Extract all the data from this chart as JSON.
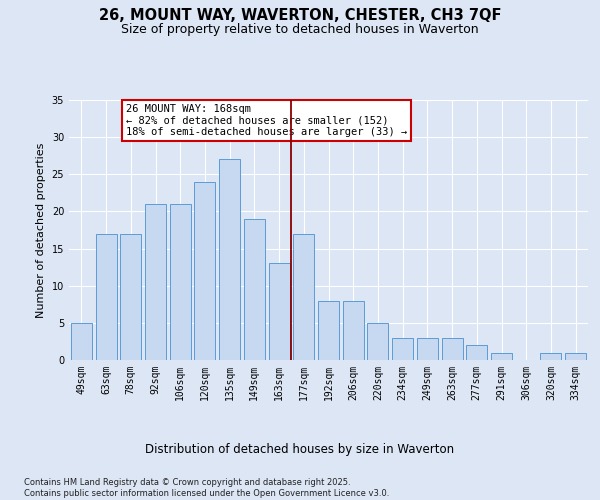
{
  "title": "26, MOUNT WAY, WAVERTON, CHESTER, CH3 7QF",
  "subtitle": "Size of property relative to detached houses in Waverton",
  "xlabel": "Distribution of detached houses by size in Waverton",
  "ylabel": "Number of detached properties",
  "categories": [
    "49sqm",
    "63sqm",
    "78sqm",
    "92sqm",
    "106sqm",
    "120sqm",
    "135sqm",
    "149sqm",
    "163sqm",
    "177sqm",
    "192sqm",
    "206sqm",
    "220sqm",
    "234sqm",
    "249sqm",
    "263sqm",
    "277sqm",
    "291sqm",
    "306sqm",
    "320sqm",
    "334sqm"
  ],
  "values": [
    5,
    17,
    17,
    21,
    21,
    24,
    27,
    19,
    13,
    17,
    8,
    8,
    5,
    3,
    3,
    3,
    2,
    1,
    0,
    1,
    1
  ],
  "bar_color": "#c6d9f1",
  "bar_edge_color": "#5b9bd5",
  "vline_x": 8.5,
  "vline_color": "#8b0000",
  "annotation_text": "26 MOUNT WAY: 168sqm\n← 82% of detached houses are smaller (152)\n18% of semi-detached houses are larger (33) →",
  "annotation_box_color": "#ffffff",
  "annotation_box_edge": "#cc0000",
  "ylim": [
    0,
    35
  ],
  "yticks": [
    0,
    5,
    10,
    15,
    20,
    25,
    30,
    35
  ],
  "background_color": "#dce6f5",
  "footer_text": "Contains HM Land Registry data © Crown copyright and database right 2025.\nContains public sector information licensed under the Open Government Licence v3.0.",
  "title_fontsize": 10.5,
  "subtitle_fontsize": 9,
  "xlabel_fontsize": 8.5,
  "ylabel_fontsize": 8,
  "tick_fontsize": 7,
  "annotation_fontsize": 7.5,
  "footer_fontsize": 6
}
